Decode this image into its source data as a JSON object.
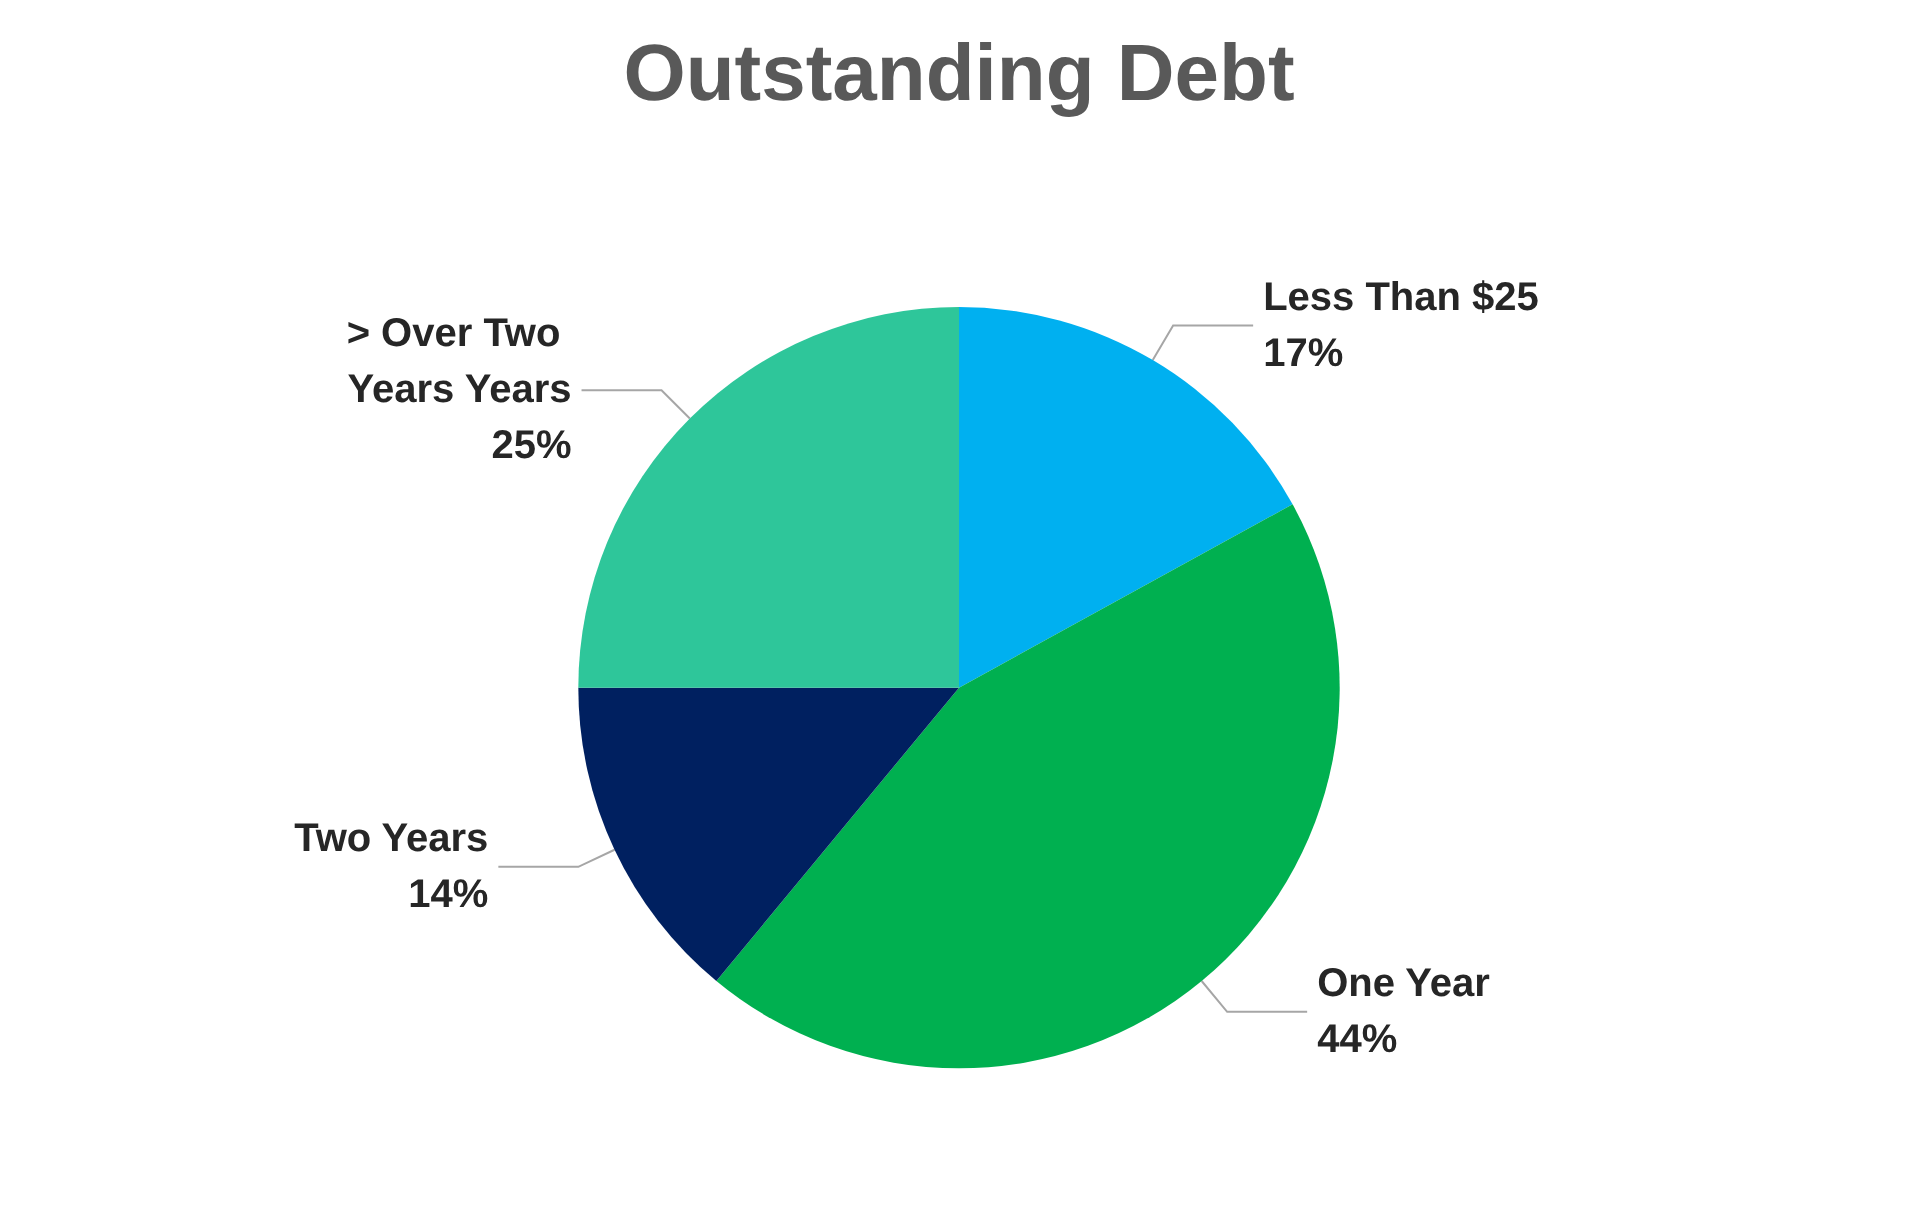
{
  "chart_data": {
    "type": "pie",
    "title": "Outstanding Debt",
    "categories": [
      "Less Than $25",
      "One Year",
      "Two Years",
      "> Over Two Years Years"
    ],
    "values": [
      17,
      44,
      14,
      25
    ],
    "colors": [
      "#00b0f0",
      "#00b050",
      "#002060",
      "#2ec69a"
    ],
    "value_labels": [
      "17%",
      "44%",
      "14%",
      "25%"
    ],
    "legend": false
  }
}
